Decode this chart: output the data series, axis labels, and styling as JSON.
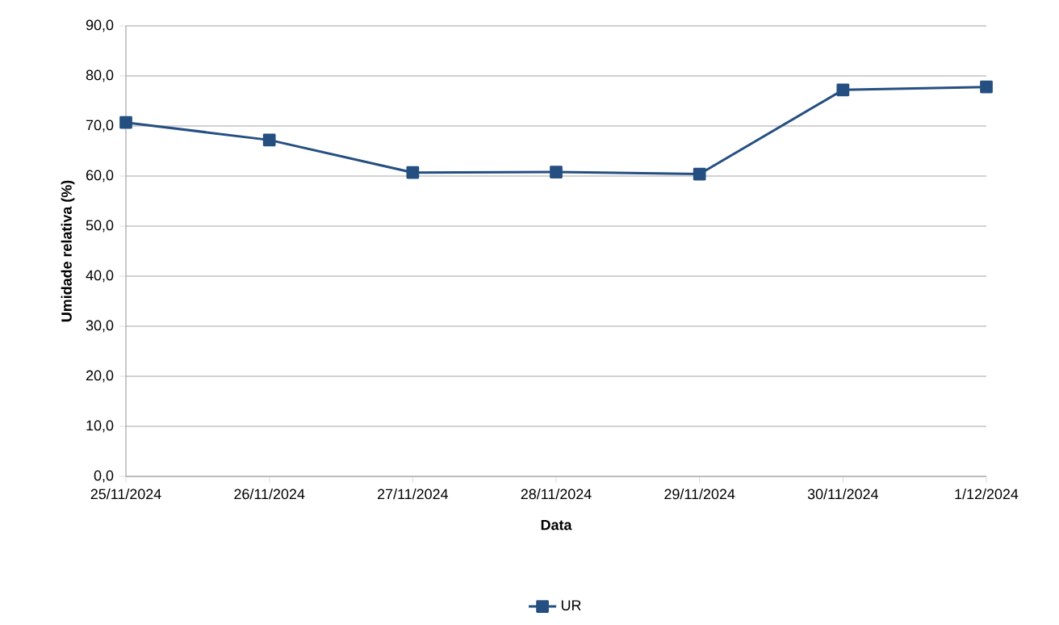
{
  "chart_data": {
    "type": "line",
    "xlabel": "Data",
    "ylabel": "Umidade relativa (%)",
    "categories": [
      "25/11/2024",
      "26/11/2024",
      "27/11/2024",
      "28/11/2024",
      "29/11/2024",
      "30/11/2024",
      "1/12/2024"
    ],
    "series": [
      {
        "name": "UR",
        "color": "#254f81",
        "values": [
          70.7,
          67.2,
          60.7,
          60.8,
          60.4,
          77.2,
          77.8
        ]
      }
    ],
    "ylim": [
      0,
      90
    ],
    "yticks": [
      {
        "value": 0,
        "label": "0,0"
      },
      {
        "value": 10,
        "label": "10,0"
      },
      {
        "value": 20,
        "label": "20,0"
      },
      {
        "value": 30,
        "label": "30,0"
      },
      {
        "value": 40,
        "label": "40,0"
      },
      {
        "value": 50,
        "label": "50,0"
      },
      {
        "value": 60,
        "label": "60,0"
      },
      {
        "value": 70,
        "label": "70,0"
      },
      {
        "value": 80,
        "label": "80,0"
      },
      {
        "value": 90,
        "label": "90,0"
      }
    ],
    "grid": "y",
    "legend": "bottom",
    "marker": "square",
    "line_style": "solid"
  }
}
